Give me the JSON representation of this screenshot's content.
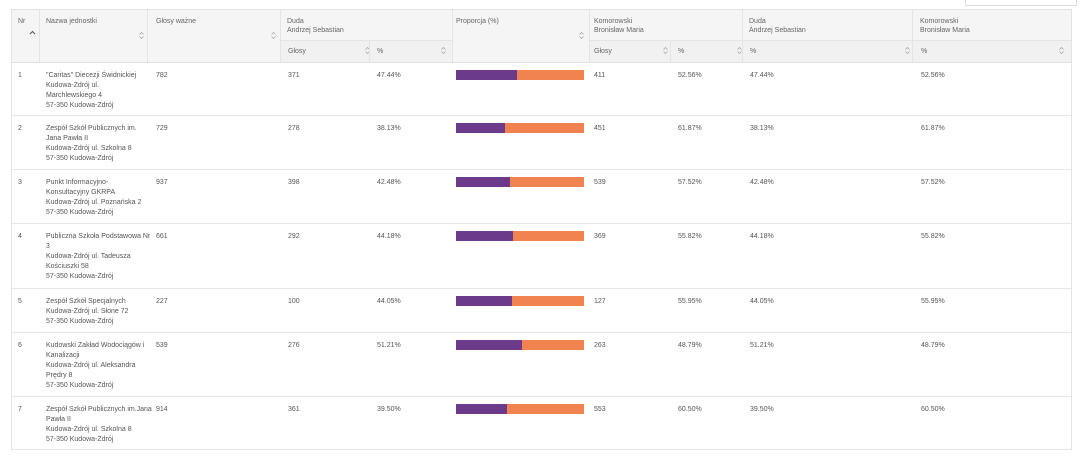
{
  "colors": {
    "duda": "#6b3a8a",
    "komorowski": "#f08350"
  },
  "header": {
    "nr": "Nr",
    "name": "Nazwa jednostki",
    "valid_votes": "Głosy ważne",
    "duda_surname": "Duda",
    "duda_given": "Andrzej Sebastian",
    "proportion": "Proporcja (%)",
    "komo_surname": "Komorowski",
    "komo_given": "Bronisław Maria",
    "duda2_surname": "Duda",
    "duda2_given": "Andrzej Sebastian",
    "komo2_surname": "Komorowski",
    "komo2_given": "Bronisław Maria",
    "sub_votes_duda": "Głosy",
    "sub_pct_duda": "%",
    "sub_votes_komo": "Głosy",
    "sub_pct_komo": "%",
    "sub_pct_duda2": "%",
    "sub_pct_komo2": "%"
  },
  "rows": [
    {
      "nr": "1",
      "name": "\"Caritas\" Diecezji Świdnickiej",
      "addr1": "Kudowa-Zdrój ul.",
      "addr2": "Marchlewskiego 4",
      "addr3": "57-350 Kudowa-Zdrój",
      "valid": "782",
      "duda_votes": "371",
      "duda_pct": "47.44%",
      "duda_share": 0.4744,
      "komo_votes": "411",
      "komo_pct": "52.56%",
      "duda_pct2": "47.44%",
      "komo_pct2": "52.56%"
    },
    {
      "nr": "2",
      "name": "Zespół Szkół Publicznych im.",
      "addr1": "Jana Pawła II",
      "addr2": "Kudowa-Zdrój ul. Szkolna 8",
      "addr3": "57-350 Kudowa-Zdrój",
      "valid": "729",
      "duda_votes": "278",
      "duda_pct": "38.13%",
      "duda_share": 0.3813,
      "komo_votes": "451",
      "komo_pct": "61.87%",
      "duda_pct2": "38.13%",
      "komo_pct2": "61.87%"
    },
    {
      "nr": "3",
      "name": "Punkt Informacyjno-",
      "addr1": "Konsultacyjny GKRPA",
      "addr2": "Kudowa-Zdrój ul. Poznańska 2",
      "addr3": "57-350 Kudowa-Zdrój",
      "valid": "937",
      "duda_votes": "398",
      "duda_pct": "42.48%",
      "duda_share": 0.4248,
      "komo_votes": "539",
      "komo_pct": "57.52%",
      "duda_pct2": "42.48%",
      "komo_pct2": "57.52%"
    },
    {
      "nr": "4",
      "name": "Publiczna Szkoła Podstawowa Nr",
      "addr1": "3",
      "addr2": "Kudowa-Zdrój ul. Tadeusza",
      "addr3": "Kościuszki 58",
      "addr4": "57-350 Kudowa-Zdrój",
      "valid": "661",
      "duda_votes": "292",
      "duda_pct": "44.18%",
      "duda_share": 0.4418,
      "komo_votes": "369",
      "komo_pct": "55.82%",
      "duda_pct2": "44.18%",
      "komo_pct2": "55.82%"
    },
    {
      "nr": "5",
      "name": "Zespół Szkół Specjalnych",
      "addr1": "Kudowa-Zdrój ul. Słone 72",
      "addr2": "57-350 Kudowa-Zdrój",
      "valid": "227",
      "duda_votes": "100",
      "duda_pct": "44.05%",
      "duda_share": 0.4405,
      "komo_votes": "127",
      "komo_pct": "55.95%",
      "duda_pct2": "44.05%",
      "komo_pct2": "55.95%"
    },
    {
      "nr": "6",
      "name": "Kudowski Zakład Wodociągów i",
      "addr1": "Kanalizacji",
      "addr2": "Kudowa-Zdrój ul. Aleksandra",
      "addr3": "Prędry 8",
      "addr4": "57-350 Kudowa-Zdrój",
      "valid": "539",
      "duda_votes": "276",
      "duda_pct": "51.21%",
      "duda_share": 0.5121,
      "komo_votes": "263",
      "komo_pct": "48.79%",
      "duda_pct2": "51.21%",
      "komo_pct2": "48.79%"
    },
    {
      "nr": "7",
      "name": "Zespół Szkół Publicznych im.Jana",
      "addr1": "Pawła II",
      "addr2": "Kudowa-Zdrój ul. Szkolna 8",
      "addr3": "57-350 Kudowa-Zdrój",
      "valid": "914",
      "duda_votes": "361",
      "duda_pct": "39.50%",
      "duda_share": 0.395,
      "komo_votes": "553",
      "komo_pct": "60.50%",
      "duda_pct2": "39.50%",
      "komo_pct2": "60.50%"
    }
  ]
}
